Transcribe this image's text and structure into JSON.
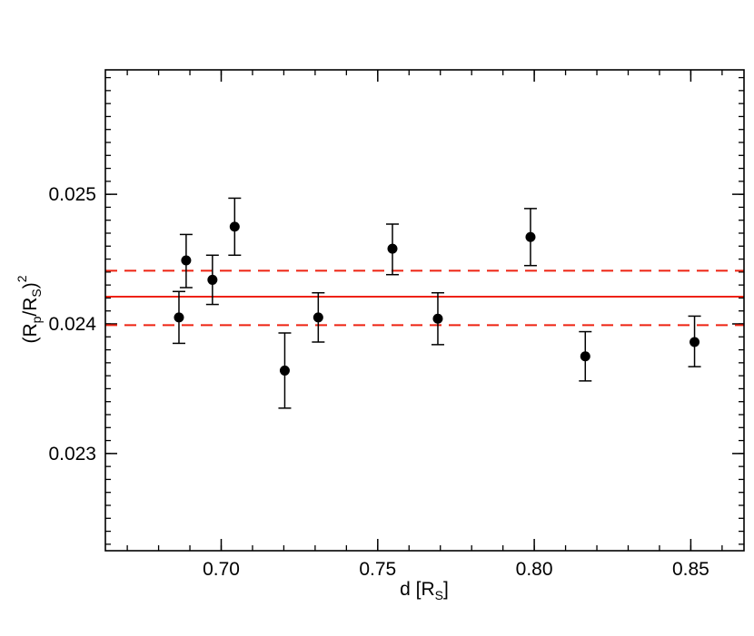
{
  "chart_data": {
    "type": "scatter",
    "title": "",
    "xlabel": {
      "main": "d [R",
      "sub": "S",
      "close": "]"
    },
    "ylabel": {
      "p1": "(R",
      "sub1": "p",
      "p2": "/R",
      "sub2": "S",
      "p3": ")",
      "sup": "2"
    },
    "xlim": [
      0.663,
      0.867
    ],
    "ylim": [
      0.02225,
      0.02596
    ],
    "xticks": [
      0.7,
      0.75,
      0.8,
      0.85
    ],
    "xtick_labels": [
      "0.70",
      "0.75",
      "0.80",
      "0.85"
    ],
    "yticks": [
      0.023,
      0.024,
      0.025
    ],
    "ytick_labels": [
      "0.023",
      "0.024",
      "0.025"
    ],
    "grid": false,
    "series": [
      {
        "marker": "filled-circle",
        "color": "#000000",
        "points": [
          {
            "x": 0.6865,
            "y": 0.02405,
            "err_low": 0.0002,
            "err_high": 0.0002
          },
          {
            "x": 0.6888,
            "y": 0.02449,
            "err_low": 0.00021,
            "err_high": 0.0002
          },
          {
            "x": 0.6972,
            "y": 0.02434,
            "err_low": 0.00019,
            "err_high": 0.00019
          },
          {
            "x": 0.7043,
            "y": 0.02475,
            "err_low": 0.00022,
            "err_high": 0.00022
          },
          {
            "x": 0.7203,
            "y": 0.02364,
            "err_low": 0.00029,
            "err_high": 0.00029
          },
          {
            "x": 0.731,
            "y": 0.02405,
            "err_low": 0.00019,
            "err_high": 0.00019
          },
          {
            "x": 0.7547,
            "y": 0.02458,
            "err_low": 0.0002,
            "err_high": 0.00019
          },
          {
            "x": 0.7692,
            "y": 0.02404,
            "err_low": 0.0002,
            "err_high": 0.0002
          },
          {
            "x": 0.7988,
            "y": 0.02467,
            "err_low": 0.00022,
            "err_high": 0.00022
          },
          {
            "x": 0.8163,
            "y": 0.02375,
            "err_low": 0.00019,
            "err_high": 0.00019
          },
          {
            "x": 0.8512,
            "y": 0.02386,
            "err_low": 0.00019,
            "err_high": 0.0002
          }
        ]
      }
    ],
    "reference_lines": [
      {
        "y": 0.02421,
        "style": "solid",
        "color": "#ee2211"
      },
      {
        "y": 0.02441,
        "style": "dashed",
        "color": "#ee2211"
      },
      {
        "y": 0.02399,
        "style": "dashed",
        "color": "#ee2211"
      }
    ]
  }
}
